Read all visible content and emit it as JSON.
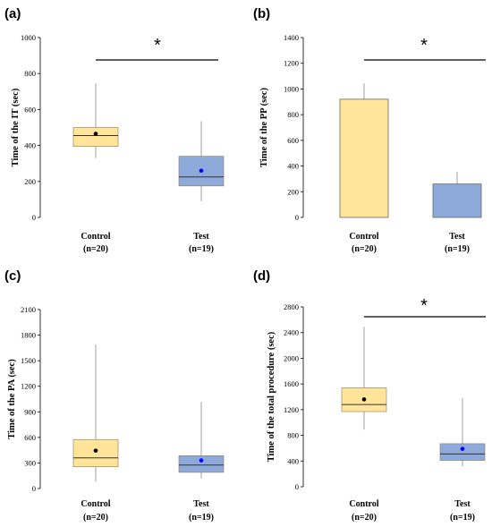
{
  "chart_data": [
    {
      "panel_label": "(a)",
      "type": "box",
      "ylabel": "Time of the IT (sec)",
      "ylim": [
        0,
        1000
      ],
      "yticks": [
        0,
        200,
        400,
        600,
        800,
        1000
      ],
      "significance": "*",
      "groups": [
        {
          "label": "Control",
          "n": "(n=20)",
          "min": 330,
          "q1": 395,
          "median": 455,
          "q3": 500,
          "max": 745,
          "mean": 465,
          "color": "#FFE49A",
          "mean_color": "#000000"
        },
        {
          "label": "Test",
          "n": "(n=19)",
          "min": 90,
          "q1": 175,
          "median": 225,
          "q3": 340,
          "max": 535,
          "mean": 260,
          "color": "#8EAADB",
          "mean_color": "#0000FF"
        }
      ]
    },
    {
      "panel_label": "(b)",
      "type": "bar",
      "ylabel": "Time of the PP (sec)",
      "ylim": [
        0,
        1400
      ],
      "yticks": [
        0,
        200,
        400,
        600,
        800,
        1000,
        1200,
        1400
      ],
      "significance": "*",
      "groups": [
        {
          "label": "Control",
          "n": "(n=20)",
          "value": 920,
          "error_top": 1045,
          "color": "#FFE49A"
        },
        {
          "label": "Test",
          "n": "(n=19)",
          "value": 260,
          "error_top": 355,
          "color": "#8EAADB"
        }
      ]
    },
    {
      "panel_label": "(c)",
      "type": "box",
      "ylabel": "Time of the PA (sec)",
      "ylim": [
        0,
        2100
      ],
      "yticks": [
        0,
        300,
        600,
        900,
        1200,
        1500,
        1800,
        2100
      ],
      "significance": "",
      "groups": [
        {
          "label": "Control",
          "n": "(n=20)",
          "min": 80,
          "q1": 255,
          "median": 360,
          "q3": 575,
          "max": 1690,
          "mean": 445,
          "color": "#FFE49A",
          "mean_color": "#000000"
        },
        {
          "label": "Test",
          "n": "(n=19)",
          "min": 120,
          "q1": 190,
          "median": 275,
          "q3": 385,
          "max": 1020,
          "mean": 330,
          "color": "#8EAADB",
          "mean_color": "#0000FF"
        }
      ]
    },
    {
      "panel_label": "(d)",
      "type": "box",
      "ylabel": "Time of the total procedure (sec)",
      "ylim": [
        0,
        2800
      ],
      "yticks": [
        0,
        400,
        800,
        1200,
        1600,
        2000,
        2400,
        2800
      ],
      "significance": "*",
      "groups": [
        {
          "label": "Control",
          "n": "(n=20)",
          "min": 890,
          "q1": 1170,
          "median": 1280,
          "q3": 1540,
          "max": 2490,
          "mean": 1360,
          "color": "#FFE49A",
          "mean_color": "#000000"
        },
        {
          "label": "Test",
          "n": "(n=19)",
          "min": 320,
          "q1": 410,
          "median": 510,
          "q3": 670,
          "max": 1380,
          "mean": 590,
          "color": "#8EAADB",
          "mean_color": "#0000FF"
        }
      ]
    }
  ]
}
